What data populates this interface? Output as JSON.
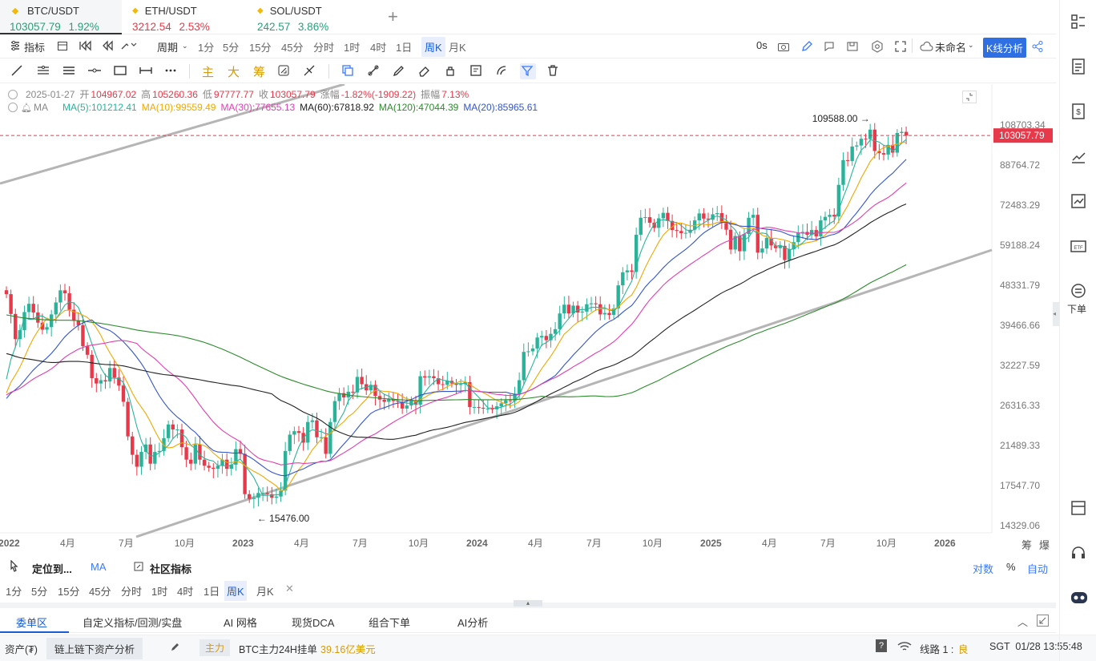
{
  "tabs": [
    {
      "name": "BTC/USDT",
      "price": "103057.79",
      "change": "1.92%",
      "color": "#26a17b",
      "active": true
    },
    {
      "name": "ETH/USDT",
      "price": "3212.54",
      "change": "2.53%",
      "color": "#e8394a",
      "active": false
    },
    {
      "name": "SOL/USDT",
      "price": "242.57",
      "change": "3.86%",
      "color": "#26a17b",
      "active": false
    }
  ],
  "toolbar1": {
    "indicator": "指标",
    "period": "周期",
    "periods": [
      "1分",
      "5分",
      "15分",
      "45分",
      "分时",
      "1时",
      "4时",
      "1日",
      "周K",
      "月K"
    ],
    "active_period": "周K",
    "zero_seconds": "0s",
    "layout_name": "未命名",
    "kline_btn": "K线分析"
  },
  "toolbar2": {
    "cn_buttons": [
      "主",
      "大",
      "筹"
    ]
  },
  "info": {
    "date": "2025-01-27",
    "open_label": "开",
    "open": "104967.02",
    "high_label": "高",
    "high": "105260.36",
    "low_label": "低",
    "low": "97777.77",
    "close_label": "收",
    "close": "103057.79",
    "chg_label": "涨幅",
    "chg": "-1.82%(-1909.22)",
    "amp_label": "振幅",
    "amp": "7.13%",
    "ma_label": "MA",
    "ma": [
      {
        "text": "MA(5):101212.41",
        "color": "#2bb39a"
      },
      {
        "text": "MA(10):99559.49",
        "color": "#f0a800"
      },
      {
        "text": "MA(30):77655.13",
        "color": "#e040b0"
      },
      {
        "text": "MA(60):67818.92",
        "color": "#222222"
      },
      {
        "text": "MA(120):47044.39",
        "color": "#2e8b2e"
      },
      {
        "text": "MA(20):85965.61",
        "color": "#3355cc"
      }
    ]
  },
  "chart_data": {
    "type": "candlestick",
    "interval": "1W",
    "y_scale": "log",
    "y_ticks": [
      "108703.34",
      "88764.72",
      "72483.29",
      "59188.24",
      "48331.79",
      "39466.66",
      "32227.59",
      "26316.33",
      "21489.33",
      "17547.70",
      "14329.06"
    ],
    "x_ticks": [
      "2022",
      "4月",
      "7月",
      "10月",
      "2023",
      "4月",
      "7月",
      "10月",
      "2024",
      "4月",
      "7月",
      "10月",
      "2025",
      "4月",
      "7月",
      "10月",
      "2026"
    ],
    "last_price": "103057.79",
    "max_label": "109588.00",
    "min_label": "15476.00",
    "up_color": "#2bb39a",
    "down_color": "#e8394a",
    "closes": [
      46200,
      41800,
      36800,
      38500,
      42200,
      44000,
      42100,
      40000,
      38600,
      39100,
      41700,
      44300,
      47100,
      46400,
      42700,
      40400,
      39500,
      35500,
      34000,
      30200,
      29400,
      29900,
      29700,
      31800,
      30300,
      29100,
      26800,
      22500,
      20500,
      19300,
      20800,
      21600,
      19600,
      20800,
      20900,
      22300,
      23900,
      23300,
      23300,
      21300,
      20000,
      19600,
      21600,
      20000,
      19400,
      19200,
      19100,
      19400,
      20000,
      19100,
      19500,
      21100,
      20600,
      16800,
      16400,
      16500,
      16900,
      16900,
      16800,
      16500,
      16600,
      17100,
      20900,
      22700,
      23100,
      22900,
      21800,
      24200,
      24400,
      22400,
      22400,
      20600,
      24200,
      26900,
      28000,
      27400,
      28200,
      28100,
      30400,
      29300,
      28400,
      29200,
      27600,
      27100,
      26800,
      27200,
      26900,
      26800,
      25900,
      26300,
      27000,
      26400,
      30500,
      30300,
      30500,
      30200,
      29300,
      29200,
      29800,
      29400,
      29200,
      29300,
      29600,
      26100,
      26100,
      26000,
      25900,
      25900,
      25800,
      26200,
      26600,
      27000,
      26900,
      27900,
      29900,
      34500,
      34600,
      35100,
      37100,
      37400,
      36600,
      37800,
      38700,
      41900,
      43800,
      41900,
      43600,
      42100,
      42300,
      43900,
      44100,
      43900,
      41700,
      42000,
      41600,
      43000,
      48300,
      51600,
      52100,
      51700,
      62400,
      68000,
      68200,
      66300,
      64600,
      67800,
      69700,
      66900,
      63900,
      63600,
      62900,
      63000,
      64000,
      67100,
      69500,
      67700,
      67300,
      69200,
      69600,
      66200,
      64000,
      57900,
      62000,
      57400,
      62600,
      68000,
      69000,
      57000,
      58200,
      61400,
      59100,
      58300,
      59000,
      54900,
      58000,
      60100,
      63100,
      63300,
      62400,
      63900,
      61900,
      67100,
      68300,
      69000,
      68400,
      80300,
      91000,
      90600,
      97500,
      98000,
      101400,
      101200,
      106200,
      95300,
      94300,
      93600,
      98300,
      94500,
      104400,
      105000,
      103057
    ],
    "ma_series": [
      {
        "name": "MA5",
        "color": "#2bb39a",
        "period": 5
      },
      {
        "name": "MA10",
        "color": "#f0a800",
        "period": 10
      },
      {
        "name": "MA20",
        "color": "#3355cc",
        "period": 20
      },
      {
        "name": "MA30",
        "color": "#e040b0",
        "period": 30
      },
      {
        "name": "MA60",
        "color": "#222222",
        "period": 60
      },
      {
        "name": "MA120",
        "color": "#2e8b2e",
        "period": 120
      }
    ]
  },
  "indicator_bar": {
    "locate": "定位到...",
    "ma": "MA",
    "community": "社区指标",
    "log": "对数",
    "pct": "%",
    "auto": "自动",
    "right_a": "筹",
    "right_b": "爆"
  },
  "periods2": [
    "1分",
    "5分",
    "15分",
    "45分",
    "分时",
    "1时",
    "4时",
    "1日",
    "周K",
    "月K"
  ],
  "bottom_tabs": [
    "委单区",
    "自定义指标/回测/实盘",
    "AI 网格",
    "现货DCA",
    "组合下单",
    "AI分析"
  ],
  "status": {
    "assets": "资产(₮)",
    "chain": "链上链下资产分析",
    "main_badge": "主力",
    "main_text": "BTC主力24H挂单",
    "main_amount": "39.16亿美元",
    "line": "线路 1 :",
    "line_quality": "良",
    "time": "SGT  01/28 13:55:48"
  },
  "sidebar": {
    "order_label": "下单"
  }
}
